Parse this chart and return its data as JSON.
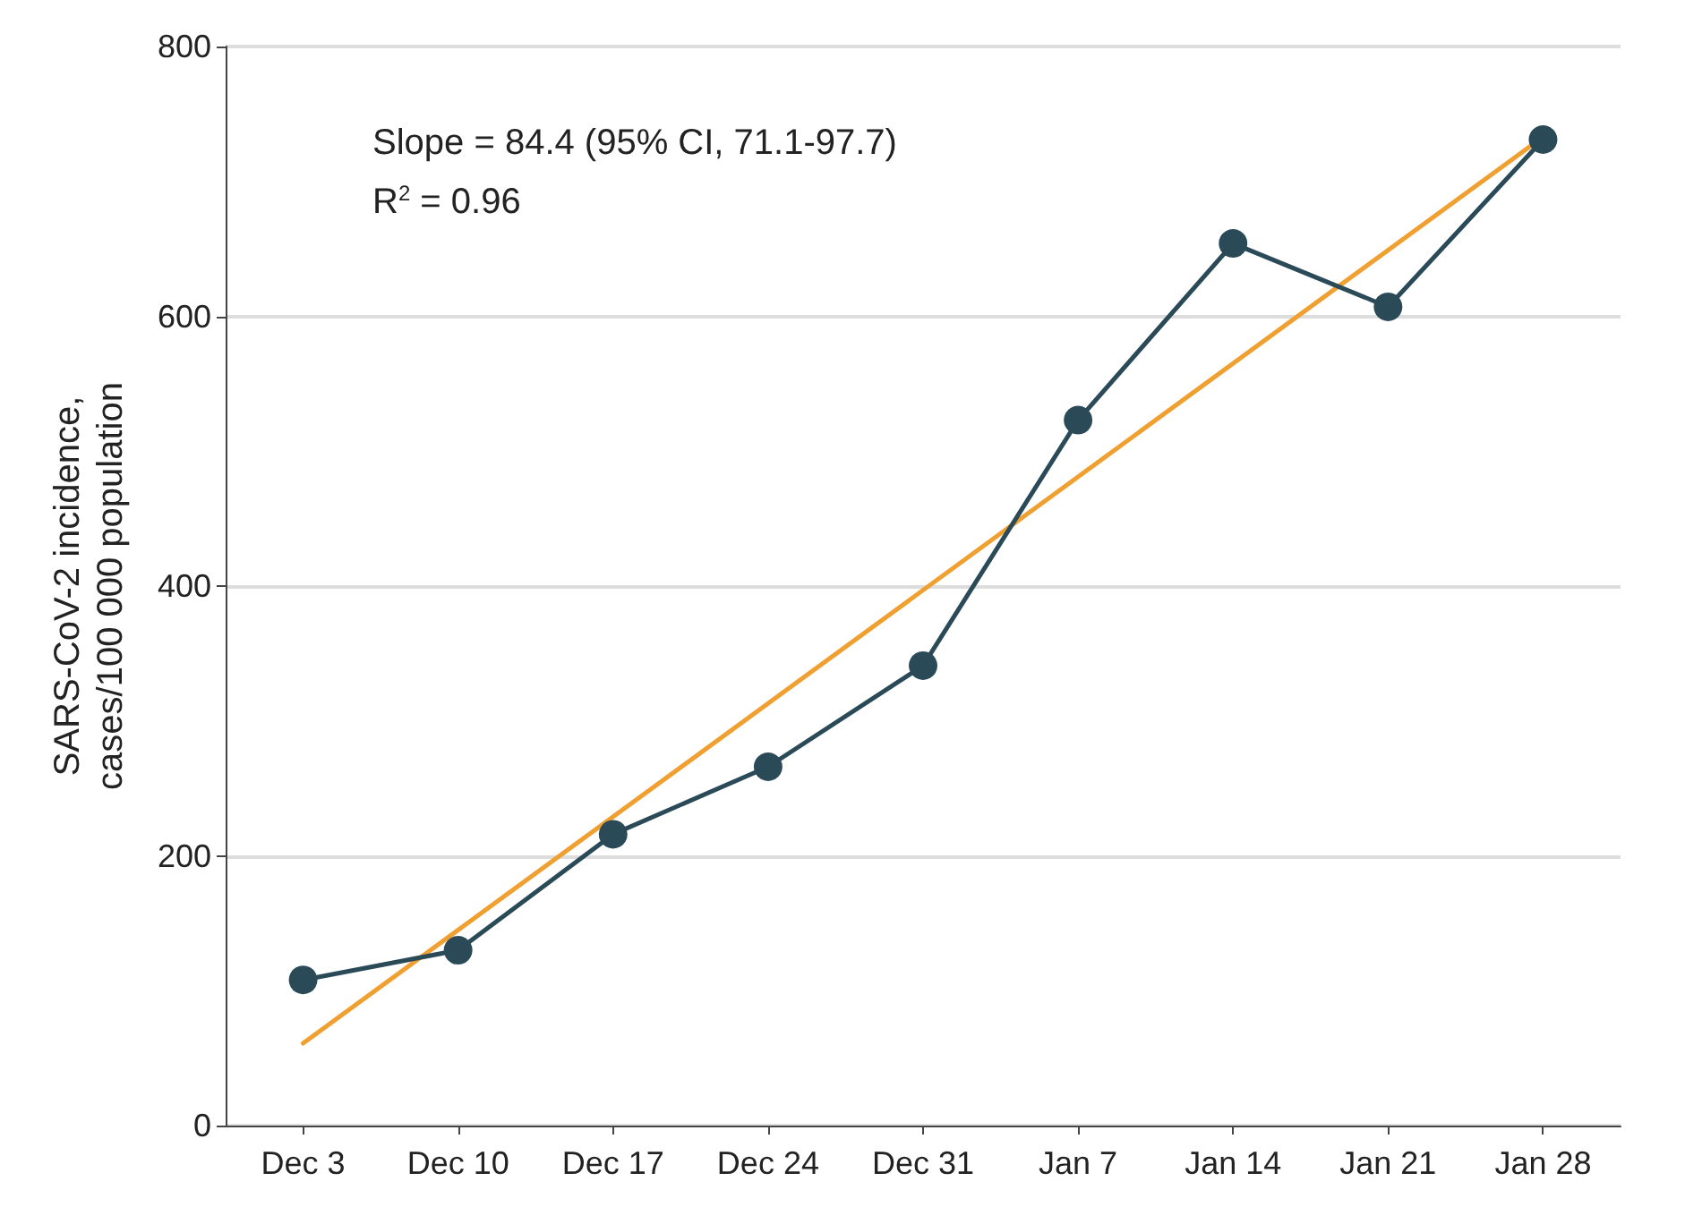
{
  "chart_data": {
    "type": "line",
    "ylabel": "SARS-CoV-2 incidence,\ncases/100 000 population",
    "categories": [
      "Dec 3",
      "Dec 10",
      "Dec 17",
      "Dec 24",
      "Dec 31",
      "Jan 7",
      "Jan 14",
      "Jan 21",
      "Jan 28"
    ],
    "series": [
      {
        "color": "#f0a030",
        "x": [
          "Dec 3",
          "Jan 28"
        ],
        "values": [
          61,
          733
        ],
        "marker": "none"
      },
      {
        "color": "#2b4a58",
        "values": [
          108,
          130,
          216,
          266,
          341,
          523,
          654,
          607,
          731
        ]
      }
    ],
    "ylim": [
      0,
      800
    ],
    "yticks": [
      0,
      200,
      400,
      600,
      800
    ],
    "grid": "y",
    "marker": "circle",
    "line_style": "solid",
    "annotations": [
      "Slope = 84.4 (95% CI, 71.1-97.7)",
      "R$^{2}$ = 0.96"
    ]
  }
}
